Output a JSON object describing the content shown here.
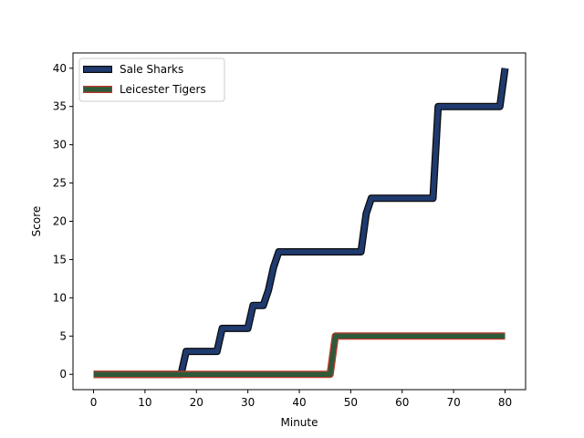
{
  "chart_data": {
    "type": "line",
    "title": "",
    "xlabel": "Minute",
    "ylabel": "Score",
    "xlim": [
      -4,
      84
    ],
    "ylim": [
      -2,
      42
    ],
    "xticks": [
      0,
      10,
      20,
      30,
      40,
      50,
      60,
      70,
      80
    ],
    "yticks": [
      0,
      5,
      10,
      15,
      20,
      25,
      30,
      35,
      40
    ],
    "grid": false,
    "legend_position": "top-left",
    "series": [
      {
        "name": "Sale Sharks",
        "color": "#1f3a6e",
        "edge_color": "#0a0a0a",
        "x": [
          0,
          17,
          18,
          24,
          25,
          30,
          31,
          33,
          34,
          35,
          36,
          51,
          52,
          53,
          54,
          65,
          66,
          67,
          78,
          79,
          80
        ],
        "y": [
          0,
          0,
          3,
          3,
          6,
          6,
          9,
          9,
          11,
          14,
          16,
          16,
          16,
          21,
          23,
          23,
          23,
          35,
          35,
          35,
          40
        ]
      },
      {
        "name": "Leicester Tigers",
        "color": "#2e5a3a",
        "edge_color": "#c0392b",
        "x": [
          0,
          46,
          47,
          80
        ],
        "y": [
          0,
          0,
          5,
          5
        ]
      }
    ]
  }
}
